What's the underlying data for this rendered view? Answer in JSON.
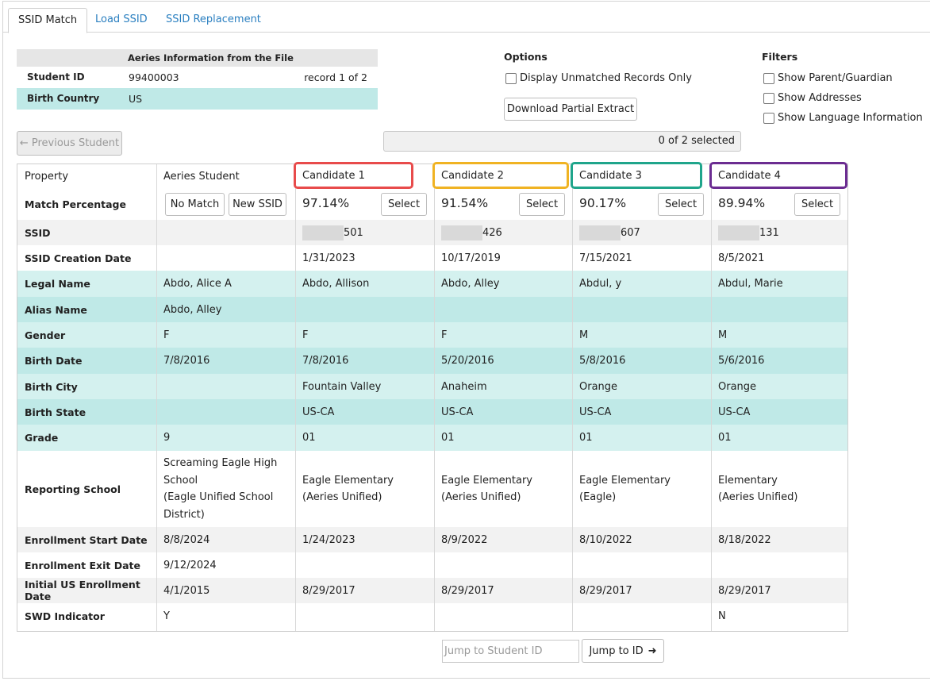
{
  "tabs": [
    "SSID Match",
    "Load SSID",
    "SSID Replacement"
  ],
  "info": {
    "header": "Aeries Information from the File",
    "student_id_label": "Student ID",
    "student_id": "99400003",
    "record": "record 1 of 2",
    "birth_country_label": "Birth Country",
    "birth_country": "US"
  },
  "options": {
    "title": "Options",
    "unmatched": "Display Unmatched Records Only",
    "download": "Download Partial Extract"
  },
  "filters": {
    "title": "Filters",
    "items": [
      "Show Parent/Guardian",
      "Show Addresses",
      "Show Language Information"
    ]
  },
  "prev_student": "← Previous Student",
  "selected": "0 of 2 selected",
  "grid": {
    "property_header": "Property",
    "student_header": "Aeries Student",
    "no_match": "No Match",
    "new_ssid": "New SSID",
    "select_label": "Select",
    "candidates": [
      {
        "name": "Candidate 1",
        "color": "#e84b4b",
        "pct": "97.14%",
        "ssid": "501",
        "created": "1/31/2023",
        "legal": "Abdo, Allison",
        "alias": "",
        "gender": "F",
        "bdate": "7/8/2016",
        "bcity": "Fountain Valley",
        "bstate": "US-CA",
        "grade": "01",
        "school": [
          "Eagle Elementary",
          "(Aeries Unified)"
        ],
        "estart": "1/24/2023",
        "eexit": "",
        "initus": "8/29/2017",
        "swd": ""
      },
      {
        "name": "Candidate 2",
        "color": "#f0b323",
        "pct": "91.54%",
        "ssid": "426",
        "created": "10/17/2019",
        "legal": "Abdo, Alley",
        "alias": "",
        "gender": "F",
        "bdate": "5/20/2016",
        "bcity": "Anaheim",
        "bstate": "US-CA",
        "grade": "01",
        "school": [
          "Eagle Elementary",
          "(Aeries Unified)"
        ],
        "estart": "8/9/2022",
        "eexit": "",
        "initus": "8/29/2017",
        "swd": ""
      },
      {
        "name": "Candidate 3",
        "color": "#1fa58b",
        "pct": "90.17%",
        "ssid": "607",
        "created": "7/15/2021",
        "legal": "Abdul, y",
        "alias": "",
        "gender": "M",
        "bdate": "5/8/2016",
        "bcity": "Orange",
        "bstate": "US-CA",
        "grade": "01",
        "school": [
          "Eagle Elementary",
          "(Eagle)"
        ],
        "estart": "8/10/2022",
        "eexit": "",
        "initus": "8/29/2017",
        "swd": ""
      },
      {
        "name": "Candidate 4",
        "color": "#6b2c91",
        "pct": "89.94%",
        "ssid": "131",
        "created": "8/5/2021",
        "legal": "Abdul, Marie",
        "alias": "",
        "gender": "M",
        "bdate": "5/6/2016",
        "bcity": "Orange",
        "bstate": "US-CA",
        "grade": "01",
        "school": [
          "Elementary",
          "(Aeries Unified)"
        ],
        "estart": "8/18/2022",
        "eexit": "",
        "initus": "8/29/2017",
        "swd": "N"
      }
    ],
    "rows": [
      {
        "key": "ssid",
        "label": "SSID",
        "student": ""
      },
      {
        "key": "created",
        "label": "SSID Creation Date",
        "student": ""
      },
      {
        "key": "legal",
        "label": "Legal Name",
        "student": "Abdo, Alice A"
      },
      {
        "key": "alias",
        "label": "Alias Name",
        "student": "Abdo, Alley"
      },
      {
        "key": "gender",
        "label": "Gender",
        "student": "F"
      },
      {
        "key": "bdate",
        "label": "Birth Date",
        "student": "7/8/2016"
      },
      {
        "key": "bcity",
        "label": "Birth City",
        "student": ""
      },
      {
        "key": "bstate",
        "label": "Birth State",
        "student": ""
      },
      {
        "key": "grade",
        "label": "Grade",
        "student": "9"
      },
      {
        "key": "school",
        "label": "Reporting School",
        "student": [
          "Screaming Eagle High",
          "School",
          "(Eagle Unified School",
          "District)"
        ]
      },
      {
        "key": "estart",
        "label": "Enrollment Start Date",
        "student": "8/8/2024"
      },
      {
        "key": "eexit",
        "label": "Enrollment Exit Date",
        "student": "9/12/2024"
      },
      {
        "key": "initus",
        "label": "Initial US Enrollment Date",
        "student": "4/1/2015"
      },
      {
        "key": "swd",
        "label": "SWD Indicator",
        "student": "Y"
      }
    ],
    "match_label": "Match Percentage"
  },
  "jump": {
    "placeholder": "Jump to Student ID",
    "button": "Jump to ID"
  }
}
